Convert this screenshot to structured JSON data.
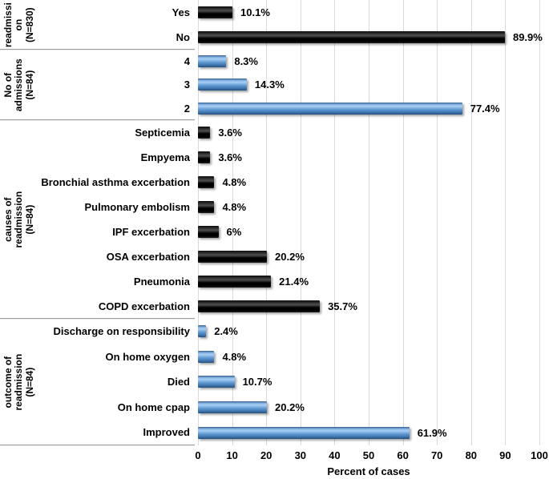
{
  "chart_data": {
    "type": "bar",
    "orientation": "horizontal",
    "title": "",
    "xlabel": "Percent of cases",
    "ylabel": "",
    "xlim": [
      0,
      100
    ],
    "x_ticks": [
      0,
      10,
      20,
      30,
      40,
      50,
      60,
      70,
      80,
      90,
      100
    ],
    "grid": "vertical gridlines on",
    "value_labels": "outside end of bars",
    "legend": "none",
    "colors": {
      "black_bar": "#0d0d0d",
      "blue_bar": "#5b9bd5",
      "gridline": "#d9d9d9",
      "divider": "#9b9b9b",
      "text": "#000000",
      "background": "#ffffff"
    },
    "groups": [
      {
        "label": "readmissi\non\n(N=830)",
        "label_plain": "readmission (N=830)",
        "bar_style": "black",
        "rows": [
          {
            "category": "Yes",
            "value": 10.1,
            "value_label": "10.1%"
          },
          {
            "category": "No",
            "value": 89.9,
            "value_label": "89.9%"
          }
        ]
      },
      {
        "label": "No of\nadmissions\n(N=84)",
        "label_plain": "No of admissions (N=84)",
        "bar_style": "blue",
        "rows": [
          {
            "category": "4",
            "value": 8.3,
            "value_label": "8.3%"
          },
          {
            "category": "3",
            "value": 14.3,
            "value_label": "14.3%"
          },
          {
            "category": "2",
            "value": 77.4,
            "value_label": "77.4%"
          }
        ]
      },
      {
        "label": "causes of readmission (N=84)",
        "label_plain": "causes of readmission (N=84)",
        "bar_style": "black",
        "rows": [
          {
            "category": "Septicemia",
            "value": 3.6,
            "value_label": "3.6%"
          },
          {
            "category": "Empyema",
            "value": 3.6,
            "value_label": "3.6%"
          },
          {
            "category": "Bronchial asthma excerbation",
            "value": 4.8,
            "value_label": "4.8%"
          },
          {
            "category": "Pulmonary embolism",
            "value": 4.8,
            "value_label": "4.8%"
          },
          {
            "category": "IPF excerbation",
            "value": 6,
            "value_label": "6%"
          },
          {
            "category": "OSA excerbation",
            "value": 20.2,
            "value_label": "20.2%"
          },
          {
            "category": "Pneumonia",
            "value": 21.4,
            "value_label": "21.4%"
          },
          {
            "category": "COPD excerbation",
            "value": 35.7,
            "value_label": "35.7%"
          }
        ]
      },
      {
        "label": "outcome of readmission\n(N=84)",
        "label_plain": "outcome of readmission (N=84)",
        "bar_style": "blue",
        "rows": [
          {
            "category": "Discharge on responsibility",
            "value": 2.4,
            "value_label": "2.4%"
          },
          {
            "category": "On home oxygen",
            "value": 4.8,
            "value_label": "4.8%"
          },
          {
            "category": "Died",
            "value": 10.7,
            "value_label": "10.7%"
          },
          {
            "category": "On home cpap",
            "value": 20.2,
            "value_label": "20.2%"
          },
          {
            "category": "Improved",
            "value": 61.9,
            "value_label": "61.9%"
          }
        ]
      }
    ]
  }
}
